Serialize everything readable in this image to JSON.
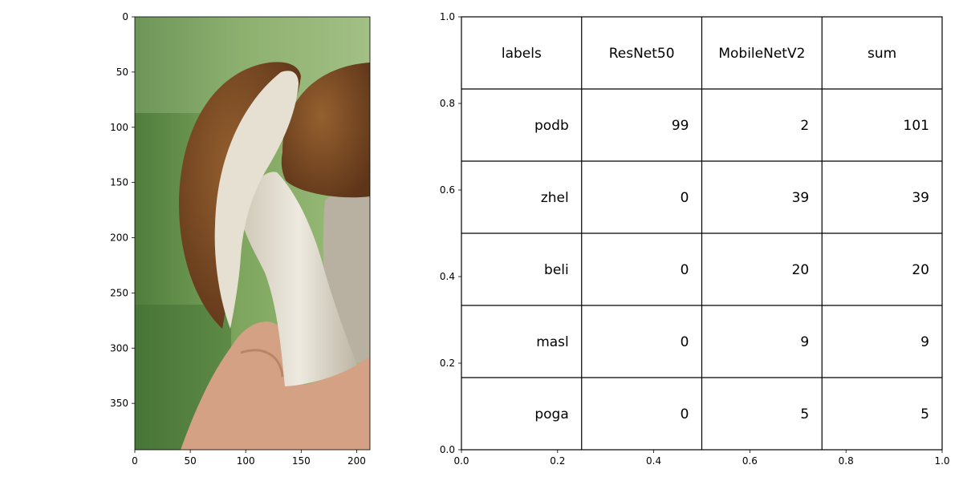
{
  "chart_data": [
    {
      "type": "image",
      "image_subject": "brown-capped mushroom (one halved) held in a hand against green grass",
      "xlim": [
        0,
        212
      ],
      "ylim": [
        392,
        0
      ],
      "xticks": [
        "0",
        "50",
        "100",
        "150",
        "200"
      ],
      "yticks": [
        "0",
        "50",
        "100",
        "150",
        "200",
        "250",
        "300",
        "350"
      ],
      "colors": {
        "grass": "#5c8a44",
        "grass_light": "#8fb46e",
        "cap": "#7a4a26",
        "cap_dark": "#5e3519",
        "flesh": "#e6e0d2",
        "stem": "#d8d2c4",
        "skin": "#d4a184"
      }
    },
    {
      "type": "table",
      "columns": [
        "labels",
        "ResNet50",
        "MobileNetV2",
        "sum"
      ],
      "rows": [
        [
          "podb",
          "99",
          "2",
          "101"
        ],
        [
          "zhel",
          "0",
          "39",
          "39"
        ],
        [
          "beli",
          "0",
          "20",
          "20"
        ],
        [
          "masl",
          "0",
          "9",
          "9"
        ],
        [
          "poga",
          "0",
          "5",
          "5"
        ]
      ],
      "xlim": [
        0,
        1
      ],
      "ylim": [
        0,
        1
      ],
      "xticks": [
        "0.0",
        "0.2",
        "0.4",
        "0.6",
        "0.8",
        "1.0"
      ],
      "yticks": [
        "0.0",
        "0.2",
        "0.4",
        "0.6",
        "0.8",
        "1.0"
      ]
    }
  ]
}
